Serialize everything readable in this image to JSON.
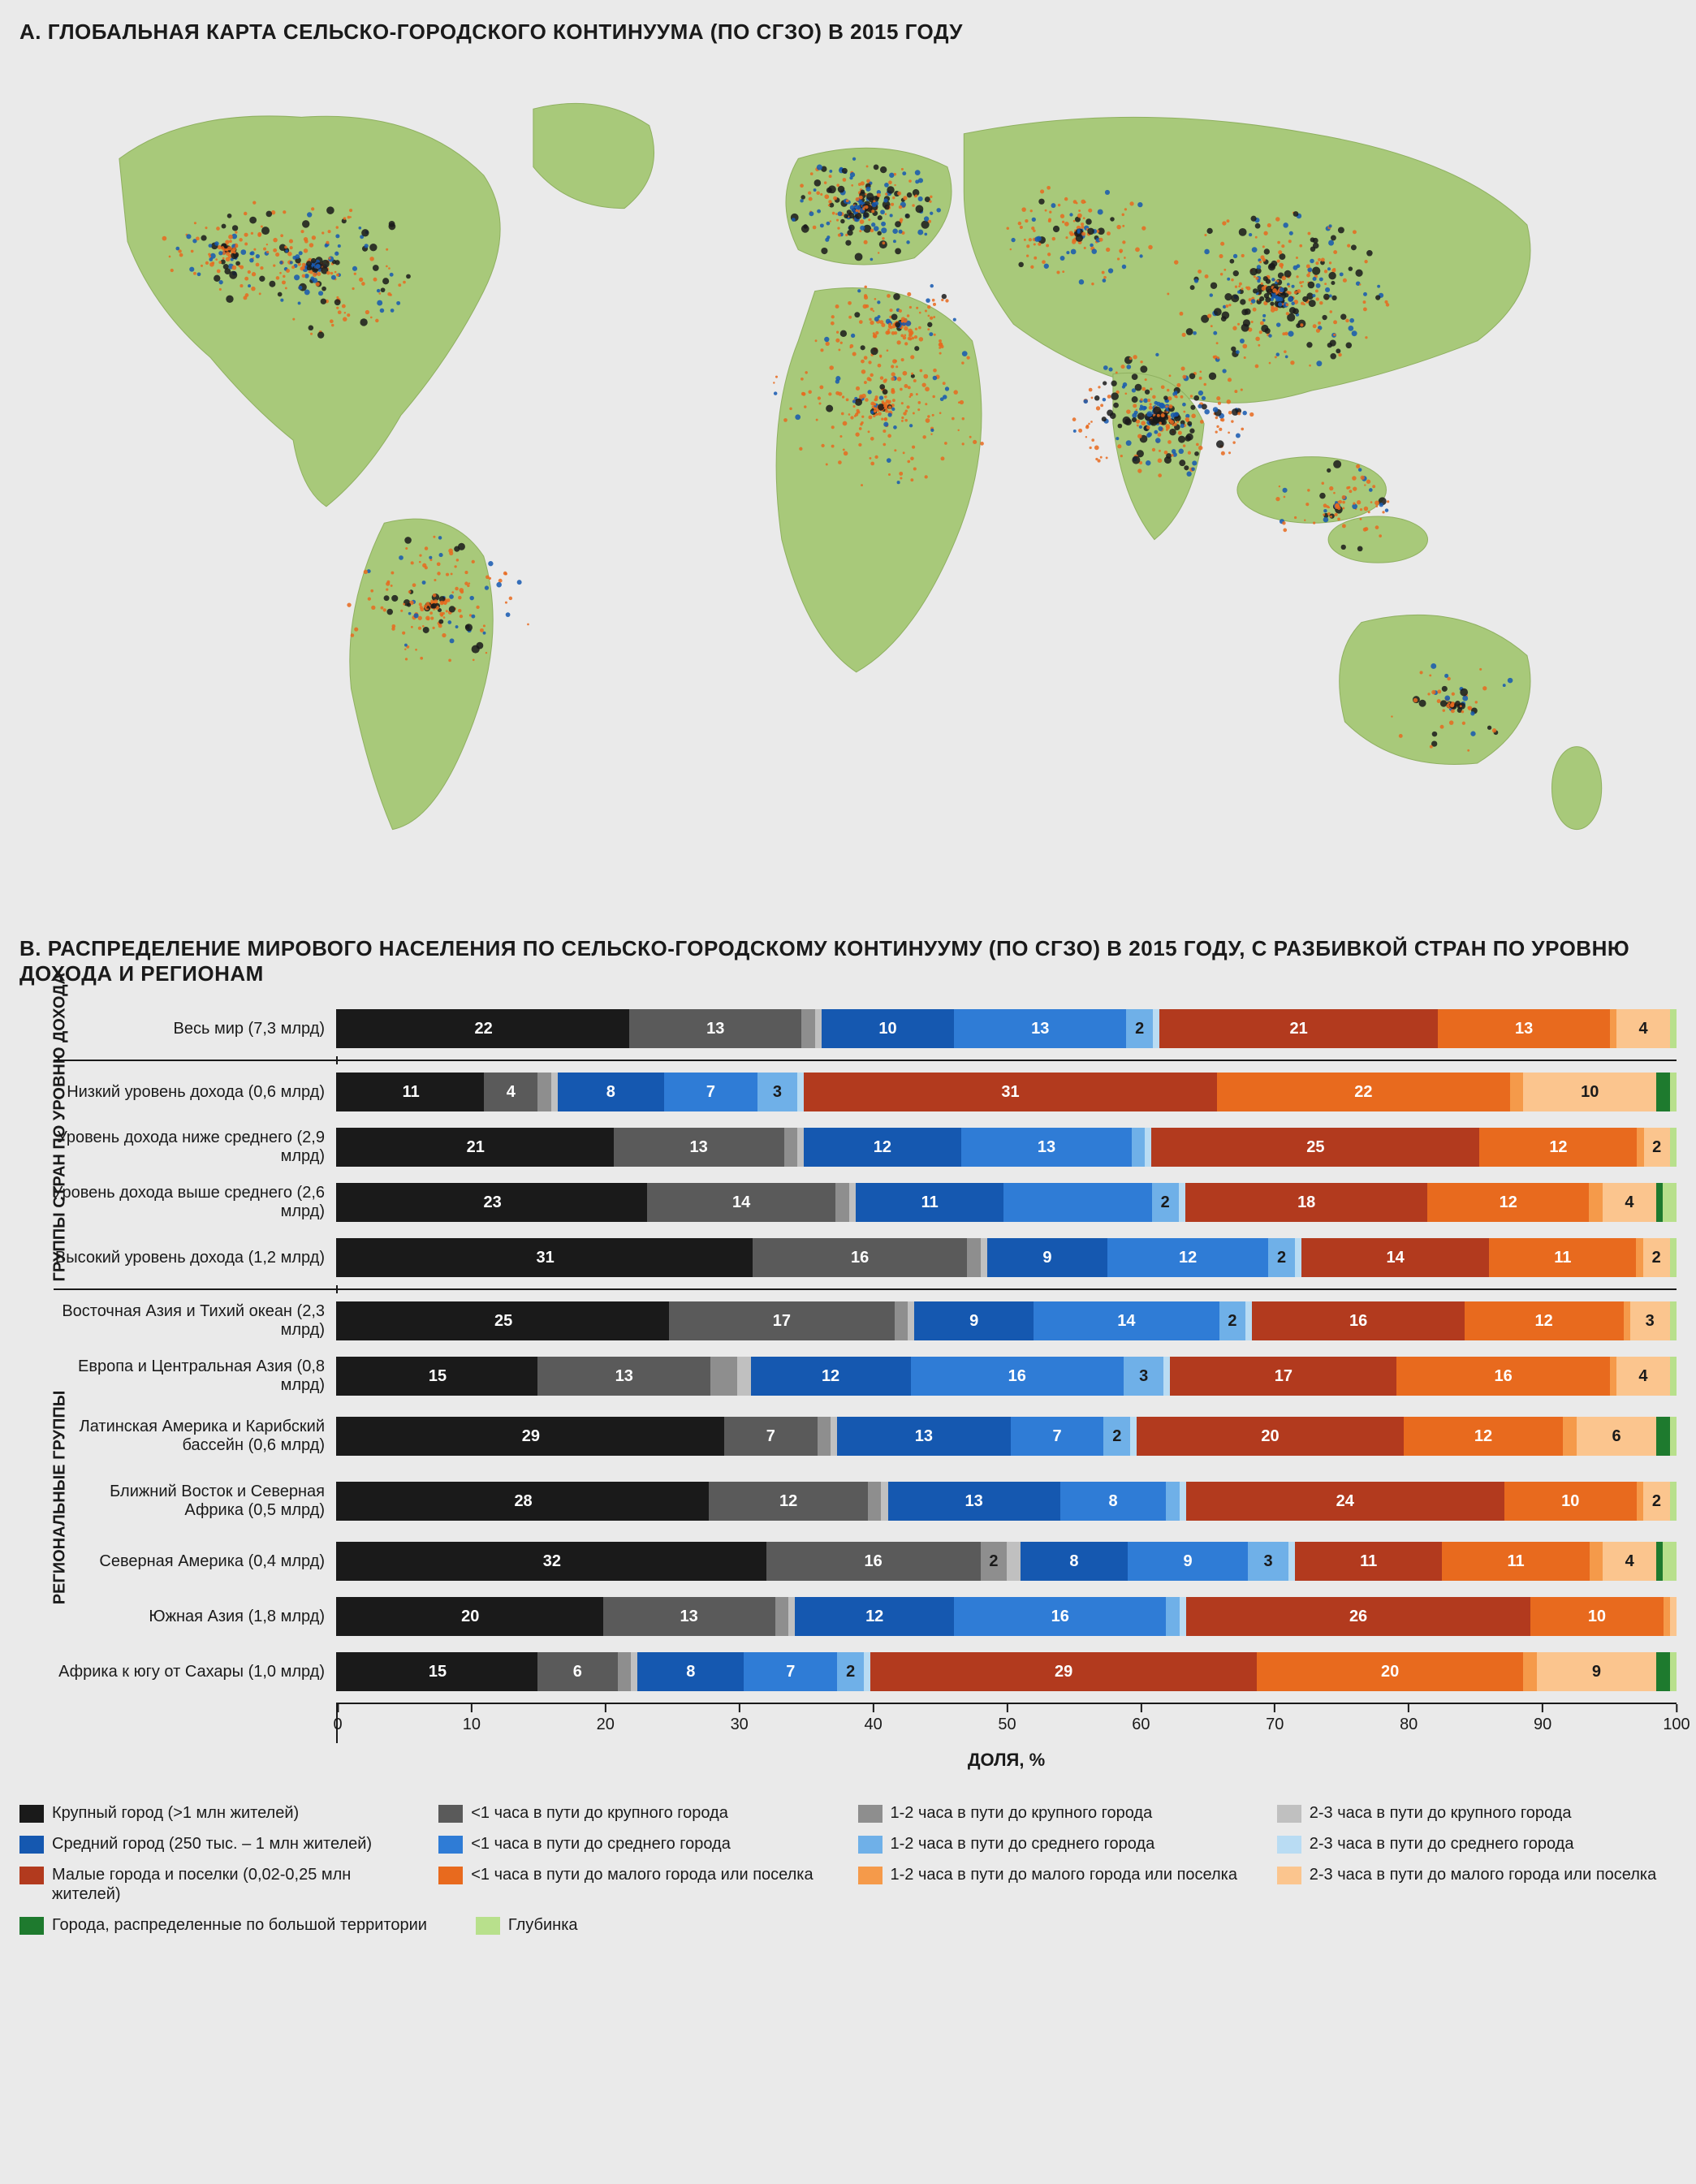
{
  "colors": {
    "bg": "#eaeaea",
    "text": "#1a1a1a",
    "land": "#a8c97a",
    "water": "#eaeaea",
    "series": {
      "large_city": "#1a1a1a",
      "large_1h": "#5a5a5a",
      "large_12h": "#8e8e8e",
      "large_23h": "#c0c0c0",
      "mid_city": "#1558b0",
      "mid_1h": "#2f7cd6",
      "mid_12h": "#6fb0e8",
      "mid_23h": "#b9dcf3",
      "small_city": "#b23a1e",
      "small_1h": "#e86a1e",
      "small_12h": "#f59a4a",
      "small_23h": "#fbc58e",
      "dispersed": "#1e7a2e",
      "hinterland": "#b8e08c"
    }
  },
  "section_a": {
    "title": "A. ГЛОБАЛЬНАЯ КАРТА СЕЛЬСКО-ГОРОДСКОГО КОНТИНУУМА (ПО СГЗО) В 2015 ГОДУ"
  },
  "section_b": {
    "title": "B. РАСПРЕДЕЛЕНИЕ МИРОВОГО НАСЕЛЕНИЯ ПО СЕЛЬСКО-ГОРОДСКОМУ КОНТИНУУМУ (ПО СГЗО) В 2015 ГОДУ, С РАЗБИВКОЙ СТРАН ПО УРОВНЮ ДОХОДА И РЕГИОНАМ",
    "axis_label": "ДОЛЯ, %",
    "x_ticks": [
      0,
      10,
      20,
      30,
      40,
      50,
      60,
      70,
      80,
      90,
      100
    ],
    "group_labels": {
      "income": "ГРУППЫ СТРАН\nПО УРОВНЮ ДОХОДА",
      "region": "РЕГИОНАЛЬНЫЕ ГРУППЫ"
    },
    "series_order": [
      "large_city",
      "large_1h",
      "large_12h",
      "large_23h",
      "mid_city",
      "mid_1h",
      "mid_12h",
      "mid_23h",
      "small_city",
      "small_1h",
      "small_12h",
      "small_23h",
      "dispersed",
      "hinterland"
    ],
    "rows": [
      {
        "group": "world",
        "label": "Весь мир (7,3 млрд)",
        "values": {
          "large_city": 22,
          "large_1h": 13,
          "large_12h": 1,
          "large_23h": 0.5,
          "mid_city": 10,
          "mid_1h": 13,
          "mid_12h": 2,
          "mid_23h": 0.5,
          "small_city": 21,
          "small_1h": 13,
          "small_12h": 0.5,
          "small_23h": 4,
          "dispersed": 0,
          "hinterland": 0.5
        },
        "show": [
          "large_city",
          "large_1h",
          "mid_city",
          "mid_1h",
          "mid_12h",
          "small_city",
          "small_1h",
          "small_23h"
        ]
      },
      {
        "group": "income",
        "label": "Низкий уровень дохода (0,6 млрд)",
        "values": {
          "large_city": 11,
          "large_1h": 4,
          "large_12h": 1,
          "large_23h": 0.5,
          "mid_city": 8,
          "mid_1h": 7,
          "mid_12h": 3,
          "mid_23h": 0.5,
          "small_city": 31,
          "small_1h": 22,
          "small_12h": 1,
          "small_23h": 10,
          "dispersed": 1,
          "hinterland": 0.5
        },
        "show": [
          "large_city",
          "large_1h",
          "mid_city",
          "mid_1h",
          "mid_12h",
          "small_city",
          "small_1h",
          "small_23h"
        ]
      },
      {
        "group": "income",
        "label": "Уровень дохода ниже среднего (2,9 млрд)",
        "values": {
          "large_city": 21,
          "large_1h": 13,
          "large_12h": 1,
          "large_23h": 0.5,
          "mid_city": 12,
          "mid_1h": 13,
          "mid_12h": 1,
          "mid_23h": 0.5,
          "small_city": 25,
          "small_1h": 12,
          "small_12h": 0.5,
          "small_23h": 2,
          "dispersed": 0,
          "hinterland": 0.5
        },
        "show": [
          "large_city",
          "large_1h",
          "mid_city",
          "mid_1h",
          "small_city",
          "small_1h",
          "small_23h"
        ]
      },
      {
        "group": "income",
        "label": "Уровень дохода выше среднего (2,6 млрд)",
        "values": {
          "large_city": 23,
          "large_1h": 14,
          "large_12h": 1,
          "large_23h": 0.5,
          "mid_city": 11,
          "mid_1h": 11,
          "mid_12h": 2,
          "mid_23h": 0.5,
          "small_city": 18,
          "small_1h": 12,
          "small_12h": 1,
          "small_23h": 4,
          "dispersed": 0.5,
          "hinterland": 1
        },
        "show": [
          "large_city",
          "large_1h",
          "mid_city",
          "mid_12h",
          "small_city",
          "small_1h",
          "small_23h"
        ]
      },
      {
        "group": "income",
        "label": "Высокий уровень дохода (1,2 млрд)",
        "values": {
          "large_city": 31,
          "large_1h": 16,
          "large_12h": 1,
          "large_23h": 0.5,
          "mid_city": 9,
          "mid_1h": 12,
          "mid_12h": 2,
          "mid_23h": 0.5,
          "small_city": 14,
          "small_1h": 11,
          "small_12h": 0.5,
          "small_23h": 2,
          "dispersed": 0,
          "hinterland": 0.5
        },
        "show": [
          "large_city",
          "large_1h",
          "mid_city",
          "mid_1h",
          "mid_12h",
          "small_city",
          "small_1h",
          "small_23h"
        ]
      },
      {
        "group": "region",
        "label": "Восточная Азия и Тихий океан (2,3 млрд)",
        "values": {
          "large_city": 25,
          "large_1h": 17,
          "large_12h": 1,
          "large_23h": 0.5,
          "mid_city": 9,
          "mid_1h": 14,
          "mid_12h": 2,
          "mid_23h": 0.5,
          "small_city": 16,
          "small_1h": 12,
          "small_12h": 0.5,
          "small_23h": 3,
          "dispersed": 0,
          "hinterland": 0.5
        },
        "show": [
          "large_city",
          "large_1h",
          "mid_city",
          "mid_1h",
          "mid_12h",
          "small_city",
          "small_1h",
          "small_23h"
        ]
      },
      {
        "group": "region",
        "label": "Европа и Центральная Азия (0,8 млрд)",
        "values": {
          "large_city": 15,
          "large_1h": 13,
          "large_12h": 2,
          "large_23h": 1,
          "mid_city": 12,
          "mid_1h": 16,
          "mid_12h": 3,
          "mid_23h": 0.5,
          "small_city": 17,
          "small_1h": 16,
          "small_12h": 0.5,
          "small_23h": 4,
          "dispersed": 0,
          "hinterland": 0.5
        },
        "show": [
          "large_city",
          "large_1h",
          "mid_city",
          "mid_1h",
          "mid_12h",
          "small_city",
          "small_1h",
          "small_23h"
        ]
      },
      {
        "group": "region",
        "label": "Латинская Америка и Карибский бассейн (0,6 млрд)",
        "values": {
          "large_city": 29,
          "large_1h": 7,
          "large_12h": 1,
          "large_23h": 0.5,
          "mid_city": 13,
          "mid_1h": 7,
          "mid_12h": 2,
          "mid_23h": 0.5,
          "small_city": 20,
          "small_1h": 12,
          "small_12h": 1,
          "small_23h": 6,
          "dispersed": 1,
          "hinterland": 0.5
        },
        "show": [
          "large_city",
          "large_1h",
          "mid_city",
          "mid_1h",
          "mid_12h",
          "small_city",
          "small_1h",
          "small_23h"
        ]
      },
      {
        "group": "region",
        "label": "Ближний Восток и Северная Африка (0,5 млрд)",
        "values": {
          "large_city": 28,
          "large_1h": 12,
          "large_12h": 1,
          "large_23h": 0.5,
          "mid_city": 13,
          "mid_1h": 8,
          "mid_12h": 1,
          "mid_23h": 0.5,
          "small_city": 24,
          "small_1h": 10,
          "small_12h": 0.5,
          "small_23h": 2,
          "dispersed": 0,
          "hinterland": 0.5
        },
        "show": [
          "large_city",
          "large_1h",
          "mid_city",
          "mid_1h",
          "small_city",
          "small_1h",
          "small_23h"
        ]
      },
      {
        "group": "region",
        "label": "Северная Америка (0,4 млрд)",
        "values": {
          "large_city": 32,
          "large_1h": 16,
          "large_12h": 2,
          "large_23h": 1,
          "mid_city": 8,
          "mid_1h": 9,
          "mid_12h": 3,
          "mid_23h": 0.5,
          "small_city": 11,
          "small_1h": 11,
          "small_12h": 1,
          "small_23h": 4,
          "dispersed": 0.5,
          "hinterland": 1
        },
        "show": [
          "large_city",
          "large_1h",
          "large_12h",
          "mid_city",
          "mid_1h",
          "mid_12h",
          "small_city",
          "small_1h",
          "small_23h"
        ]
      },
      {
        "group": "region",
        "label": "Южная Азия (1,8 млрд)",
        "values": {
          "large_city": 20,
          "large_1h": 13,
          "large_12h": 1,
          "large_23h": 0.5,
          "mid_city": 12,
          "mid_1h": 16,
          "mid_12h": 1,
          "mid_23h": 0.5,
          "small_city": 26,
          "small_1h": 10,
          "small_12h": 0.5,
          "small_23h": 0.5,
          "dispersed": 0,
          "hinterland": 0
        },
        "show": [
          "large_city",
          "large_1h",
          "mid_city",
          "mid_1h",
          "small_city",
          "small_1h"
        ]
      },
      {
        "group": "region",
        "label": "Африка к югу от Сахары (1,0 млрд)",
        "values": {
          "large_city": 15,
          "large_1h": 6,
          "large_12h": 1,
          "large_23h": 0.5,
          "mid_city": 8,
          "mid_1h": 7,
          "mid_12h": 2,
          "mid_23h": 0.5,
          "small_city": 29,
          "small_1h": 20,
          "small_12h": 1,
          "small_23h": 9,
          "dispersed": 1,
          "hinterland": 0.5
        },
        "show": [
          "large_city",
          "large_1h",
          "mid_city",
          "mid_1h",
          "mid_12h",
          "small_city",
          "small_1h",
          "small_23h"
        ]
      }
    ]
  },
  "legend": {
    "rows": [
      [
        {
          "key": "large_city",
          "label": "Крупный город (>1 млн жителей)"
        },
        {
          "key": "large_1h",
          "label": "<1 часа в пути до крупного города"
        },
        {
          "key": "large_12h",
          "label": "1-2 часа в пути до крупного города"
        },
        {
          "key": "large_23h",
          "label": "2-3 часа в пути до крупного города"
        }
      ],
      [
        {
          "key": "mid_city",
          "label": "Средний город (250 тыс. – 1 млн жителей)"
        },
        {
          "key": "mid_1h",
          "label": "<1 часа в пути до среднего города"
        },
        {
          "key": "mid_12h",
          "label": "1-2 часа в пути до среднего города"
        },
        {
          "key": "mid_23h",
          "label": "2-3 часа в пути до среднего города"
        }
      ],
      [
        {
          "key": "small_city",
          "label": "Малые города и поселки (0,02-0,25 млн жителей)"
        },
        {
          "key": "small_1h",
          "label": "<1 часа в пути до малого города или поселка"
        },
        {
          "key": "small_12h",
          "label": "1-2 часа в пути до малого города или поселка"
        },
        {
          "key": "small_23h",
          "label": "2-3 часа в пути до малого города или поселка"
        }
      ]
    ],
    "final": [
      {
        "key": "dispersed",
        "label": "Города, распределенные по большой территории"
      },
      {
        "key": "hinterland",
        "label": "Глубинка"
      }
    ]
  }
}
